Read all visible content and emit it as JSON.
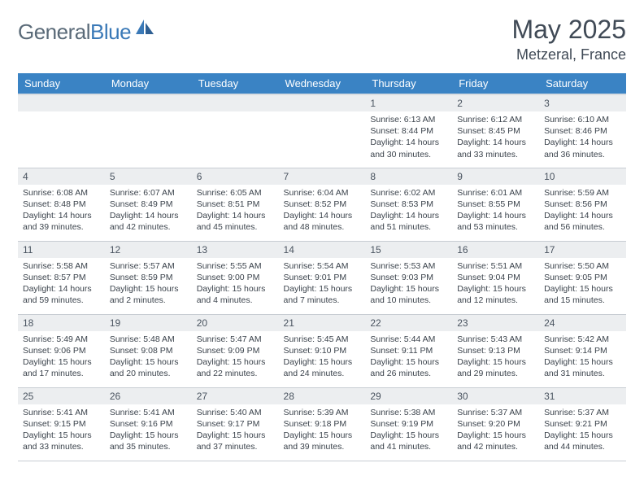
{
  "brand": {
    "part1": "General",
    "part2": "Blue"
  },
  "title": "May 2025",
  "location": "Metzeral, France",
  "colors": {
    "header_bg": "#3a83c4",
    "header_text": "#ffffff",
    "daynum_bg": "#eceef0",
    "text": "#3b434c",
    "border": "#c8cdd3"
  },
  "dow": [
    "Sunday",
    "Monday",
    "Tuesday",
    "Wednesday",
    "Thursday",
    "Friday",
    "Saturday"
  ],
  "weeks": [
    [
      {
        "n": "",
        "sr": "",
        "ss": "",
        "dl": ""
      },
      {
        "n": "",
        "sr": "",
        "ss": "",
        "dl": ""
      },
      {
        "n": "",
        "sr": "",
        "ss": "",
        "dl": ""
      },
      {
        "n": "",
        "sr": "",
        "ss": "",
        "dl": ""
      },
      {
        "n": "1",
        "sr": "6:13 AM",
        "ss": "8:44 PM",
        "dl": "14 hours and 30 minutes."
      },
      {
        "n": "2",
        "sr": "6:12 AM",
        "ss": "8:45 PM",
        "dl": "14 hours and 33 minutes."
      },
      {
        "n": "3",
        "sr": "6:10 AM",
        "ss": "8:46 PM",
        "dl": "14 hours and 36 minutes."
      }
    ],
    [
      {
        "n": "4",
        "sr": "6:08 AM",
        "ss": "8:48 PM",
        "dl": "14 hours and 39 minutes."
      },
      {
        "n": "5",
        "sr": "6:07 AM",
        "ss": "8:49 PM",
        "dl": "14 hours and 42 minutes."
      },
      {
        "n": "6",
        "sr": "6:05 AM",
        "ss": "8:51 PM",
        "dl": "14 hours and 45 minutes."
      },
      {
        "n": "7",
        "sr": "6:04 AM",
        "ss": "8:52 PM",
        "dl": "14 hours and 48 minutes."
      },
      {
        "n": "8",
        "sr": "6:02 AM",
        "ss": "8:53 PM",
        "dl": "14 hours and 51 minutes."
      },
      {
        "n": "9",
        "sr": "6:01 AM",
        "ss": "8:55 PM",
        "dl": "14 hours and 53 minutes."
      },
      {
        "n": "10",
        "sr": "5:59 AM",
        "ss": "8:56 PM",
        "dl": "14 hours and 56 minutes."
      }
    ],
    [
      {
        "n": "11",
        "sr": "5:58 AM",
        "ss": "8:57 PM",
        "dl": "14 hours and 59 minutes."
      },
      {
        "n": "12",
        "sr": "5:57 AM",
        "ss": "8:59 PM",
        "dl": "15 hours and 2 minutes."
      },
      {
        "n": "13",
        "sr": "5:55 AM",
        "ss": "9:00 PM",
        "dl": "15 hours and 4 minutes."
      },
      {
        "n": "14",
        "sr": "5:54 AM",
        "ss": "9:01 PM",
        "dl": "15 hours and 7 minutes."
      },
      {
        "n": "15",
        "sr": "5:53 AM",
        "ss": "9:03 PM",
        "dl": "15 hours and 10 minutes."
      },
      {
        "n": "16",
        "sr": "5:51 AM",
        "ss": "9:04 PM",
        "dl": "15 hours and 12 minutes."
      },
      {
        "n": "17",
        "sr": "5:50 AM",
        "ss": "9:05 PM",
        "dl": "15 hours and 15 minutes."
      }
    ],
    [
      {
        "n": "18",
        "sr": "5:49 AM",
        "ss": "9:06 PM",
        "dl": "15 hours and 17 minutes."
      },
      {
        "n": "19",
        "sr": "5:48 AM",
        "ss": "9:08 PM",
        "dl": "15 hours and 20 minutes."
      },
      {
        "n": "20",
        "sr": "5:47 AM",
        "ss": "9:09 PM",
        "dl": "15 hours and 22 minutes."
      },
      {
        "n": "21",
        "sr": "5:45 AM",
        "ss": "9:10 PM",
        "dl": "15 hours and 24 minutes."
      },
      {
        "n": "22",
        "sr": "5:44 AM",
        "ss": "9:11 PM",
        "dl": "15 hours and 26 minutes."
      },
      {
        "n": "23",
        "sr": "5:43 AM",
        "ss": "9:13 PM",
        "dl": "15 hours and 29 minutes."
      },
      {
        "n": "24",
        "sr": "5:42 AM",
        "ss": "9:14 PM",
        "dl": "15 hours and 31 minutes."
      }
    ],
    [
      {
        "n": "25",
        "sr": "5:41 AM",
        "ss": "9:15 PM",
        "dl": "15 hours and 33 minutes."
      },
      {
        "n": "26",
        "sr": "5:41 AM",
        "ss": "9:16 PM",
        "dl": "15 hours and 35 minutes."
      },
      {
        "n": "27",
        "sr": "5:40 AM",
        "ss": "9:17 PM",
        "dl": "15 hours and 37 minutes."
      },
      {
        "n": "28",
        "sr": "5:39 AM",
        "ss": "9:18 PM",
        "dl": "15 hours and 39 minutes."
      },
      {
        "n": "29",
        "sr": "5:38 AM",
        "ss": "9:19 PM",
        "dl": "15 hours and 41 minutes."
      },
      {
        "n": "30",
        "sr": "5:37 AM",
        "ss": "9:20 PM",
        "dl": "15 hours and 42 minutes."
      },
      {
        "n": "31",
        "sr": "5:37 AM",
        "ss": "9:21 PM",
        "dl": "15 hours and 44 minutes."
      }
    ]
  ],
  "labels": {
    "sunrise": "Sunrise:",
    "sunset": "Sunset:",
    "daylight": "Daylight:"
  }
}
